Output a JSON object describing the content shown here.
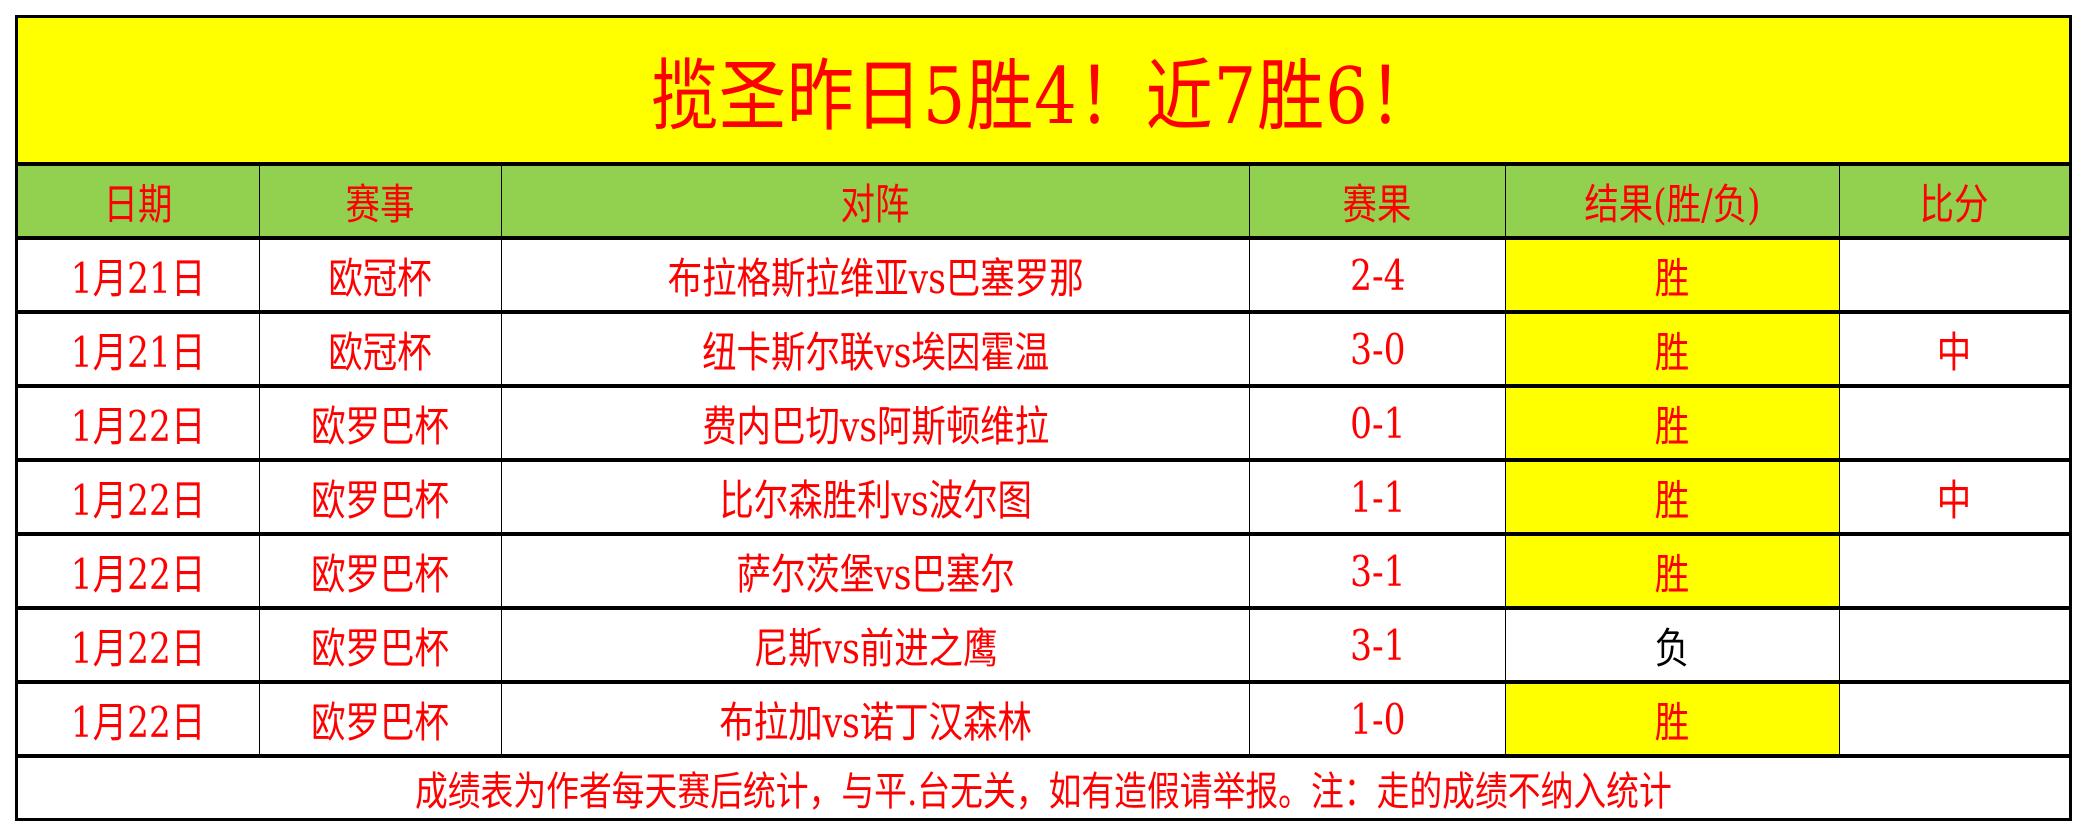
{
  "title": "揽圣昨日5胜4！近7胜6！",
  "headers": [
    "日期",
    "赛事",
    "对阵",
    "赛果",
    "结果(胜/负)",
    "比分"
  ],
  "rows": [
    {
      "date": "1月21日",
      "league": "欧冠杯",
      "match": "布拉格斯拉维亚vs巴塞罗那",
      "score": "2-4",
      "result": "胜",
      "bifen": ""
    },
    {
      "date": "1月21日",
      "league": "欧冠杯",
      "match": "纽卡斯尔联vs埃因霍温",
      "score": "3-0",
      "result": "胜",
      "bifen": "中"
    },
    {
      "date": "1月22日",
      "league": "欧罗巴杯",
      "match": "费内巴切vs阿斯顿维拉",
      "score": "0-1",
      "result": "胜",
      "bifen": ""
    },
    {
      "date": "1月22日",
      "league": "欧罗巴杯",
      "match": "比尔森胜利vs波尔图",
      "score": "1-1",
      "result": "胜",
      "bifen": "中"
    },
    {
      "date": "1月22日",
      "league": "欧罗巴杯",
      "match": "萨尔茨堡vs巴塞尔",
      "score": "3-1",
      "result": "胜",
      "bifen": ""
    },
    {
      "date": "1月22日",
      "league": "欧罗巴杯",
      "match": "尼斯vs前进之鹰",
      "score": "3-1",
      "result": "负",
      "bifen": ""
    },
    {
      "date": "1月22日",
      "league": "欧罗巴杯",
      "match": "布拉加vs诺丁汉森林",
      "score": "1-0",
      "result": "胜",
      "bifen": ""
    }
  ],
  "footer": "成绩表为作者每天赛后统计，与平.台无关，如有造假请举报。注：走的成绩不纳入统计",
  "colors": {
    "title_bg": "#ffff00",
    "header_bg": "#92d050",
    "text": "#ff0000",
    "win_bg": "#ffff00",
    "loss_text": "#000000"
  }
}
